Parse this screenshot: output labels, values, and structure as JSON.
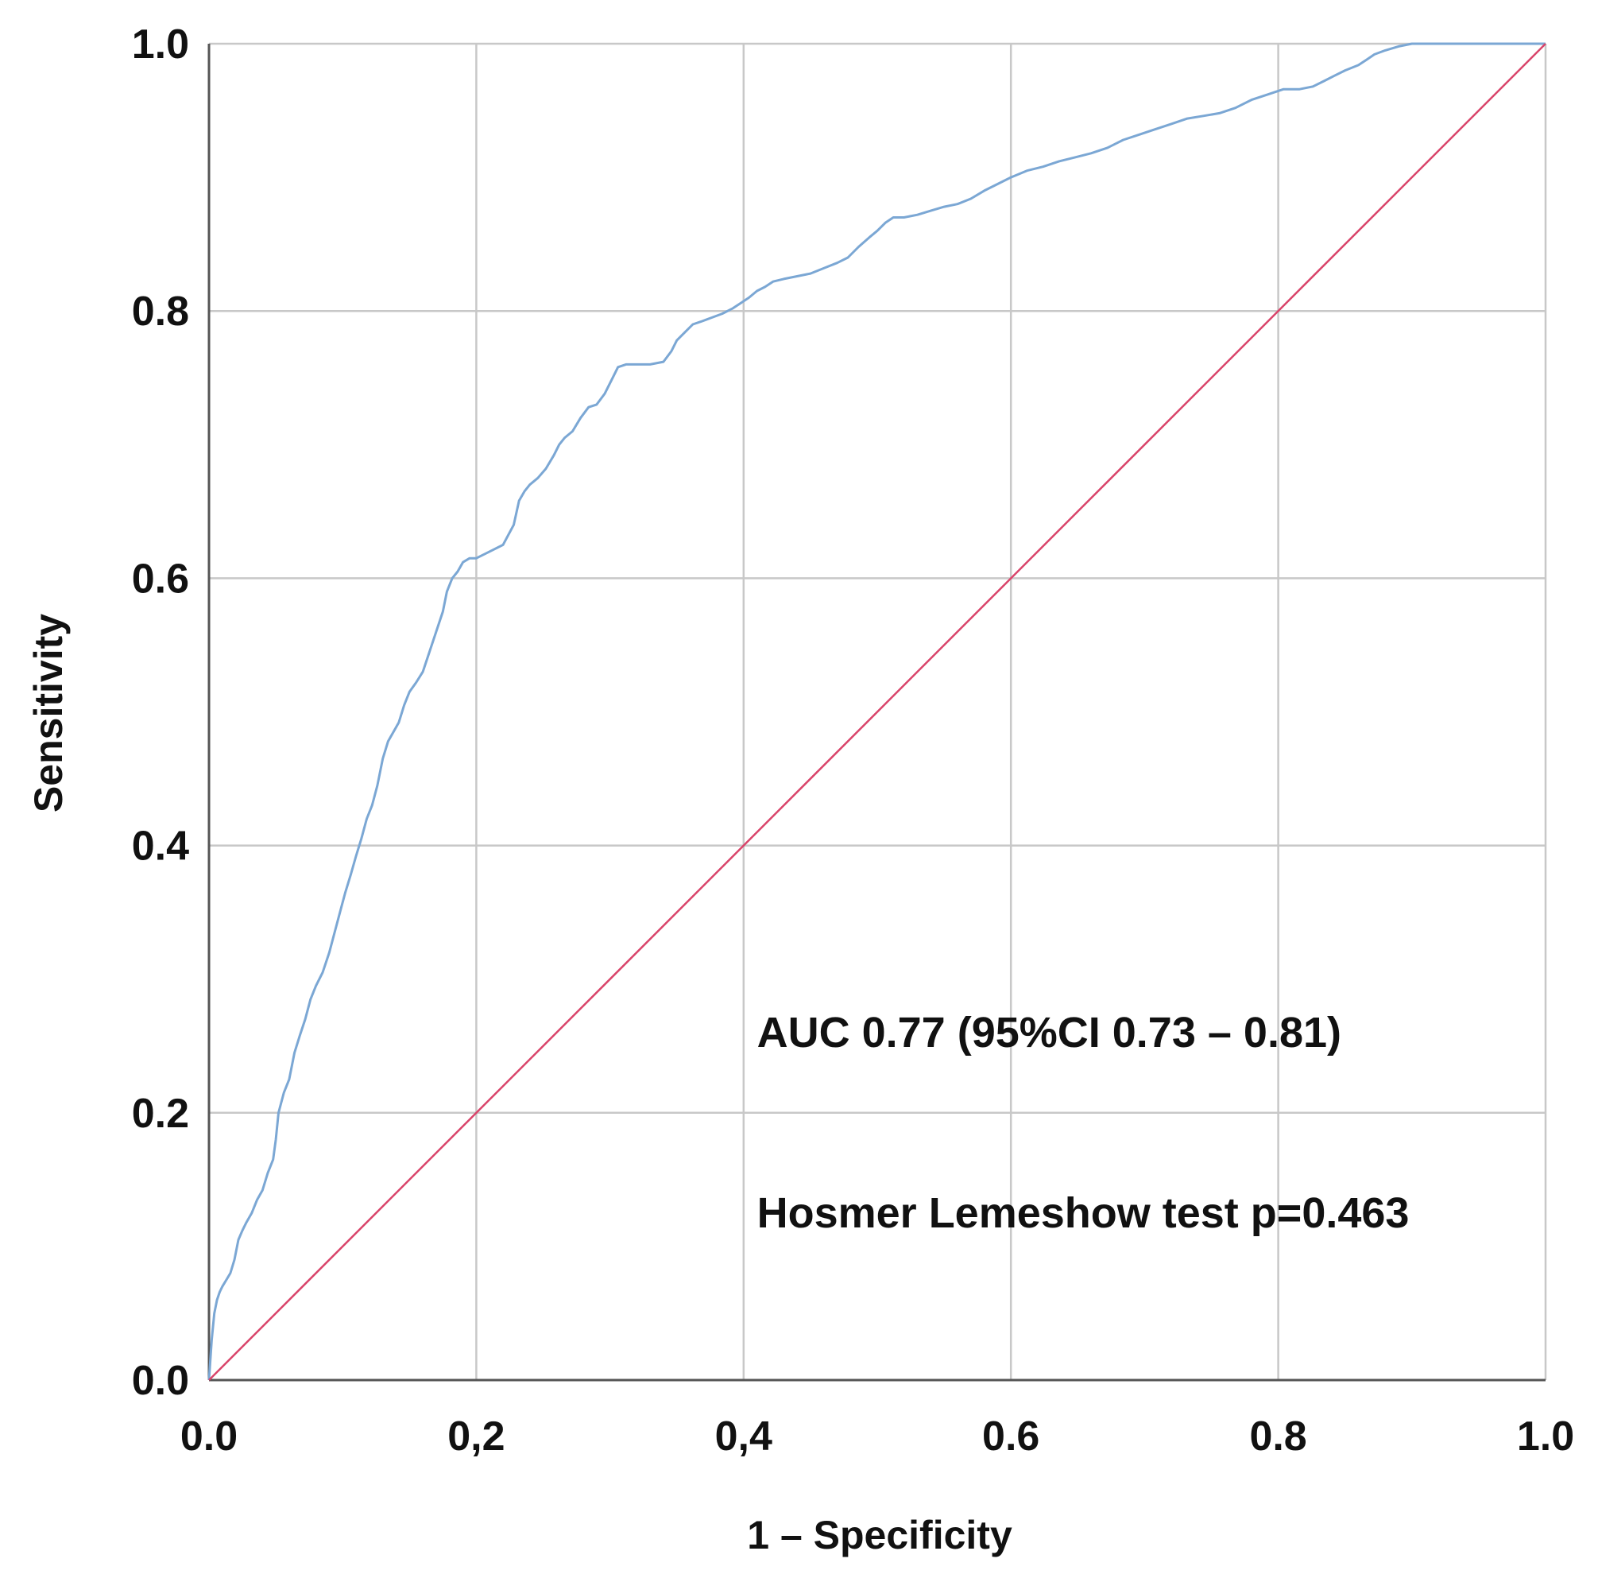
{
  "chart_data": {
    "type": "line",
    "title": "",
    "xlabel": "1 – Specificity",
    "ylabel": "Sensitivity",
    "xlim": [
      0,
      1
    ],
    "ylim": [
      0,
      1
    ],
    "grid": true,
    "x_ticks": [
      {
        "value": 0.0,
        "label": "0.0"
      },
      {
        "value": 0.2,
        "label": "0,2"
      },
      {
        "value": 0.4,
        "label": "0,4"
      },
      {
        "value": 0.6,
        "label": "0.6"
      },
      {
        "value": 0.8,
        "label": "0.8"
      },
      {
        "value": 1.0,
        "label": "1.0"
      }
    ],
    "y_ticks": [
      {
        "value": 0.0,
        "label": "0.0"
      },
      {
        "value": 0.2,
        "label": "0.2"
      },
      {
        "value": 0.4,
        "label": "0.4"
      },
      {
        "value": 0.6,
        "label": "0.6"
      },
      {
        "value": 0.8,
        "label": "0.8"
      },
      {
        "value": 1.0,
        "label": "1.0"
      }
    ],
    "series": [
      {
        "name": "ROC curve",
        "color": "#7ba7d4",
        "x": [
          0,
          0.002,
          0.004,
          0.006,
          0.008,
          0.01,
          0.013,
          0.016,
          0.019,
          0.022,
          0.025,
          0.028,
          0.032,
          0.036,
          0.04,
          0.044,
          0.048,
          0.05,
          0.052,
          0.056,
          0.06,
          0.064,
          0.068,
          0.072,
          0.076,
          0.08,
          0.085,
          0.09,
          0.094,
          0.098,
          0.102,
          0.106,
          0.11,
          0.114,
          0.118,
          0.122,
          0.126,
          0.13,
          0.134,
          0.138,
          0.142,
          0.146,
          0.15,
          0.155,
          0.16,
          0.165,
          0.17,
          0.175,
          0.178,
          0.182,
          0.186,
          0.19,
          0.195,
          0.2,
          0.21,
          0.22,
          0.228,
          0.232,
          0.236,
          0.24,
          0.246,
          0.252,
          0.258,
          0.262,
          0.266,
          0.272,
          0.278,
          0.284,
          0.29,
          0.296,
          0.302,
          0.306,
          0.312,
          0.32,
          0.33,
          0.34,
          0.346,
          0.35,
          0.356,
          0.362,
          0.368,
          0.376,
          0.384,
          0.392,
          0.398,
          0.404,
          0.41,
          0.416,
          0.422,
          0.43,
          0.44,
          0.45,
          0.46,
          0.47,
          0.478,
          0.486,
          0.494,
          0.5,
          0.506,
          0.512,
          0.52,
          0.53,
          0.54,
          0.55,
          0.56,
          0.57,
          0.58,
          0.59,
          0.6,
          0.612,
          0.624,
          0.636,
          0.648,
          0.66,
          0.672,
          0.684,
          0.696,
          0.708,
          0.72,
          0.732,
          0.744,
          0.756,
          0.768,
          0.78,
          0.792,
          0.804,
          0.816,
          0.826,
          0.834,
          0.842,
          0.85,
          0.86,
          0.866,
          0.872,
          0.88,
          0.89,
          0.9,
          0.92,
          0.95,
          1.0
        ],
        "y": [
          0,
          0.03,
          0.05,
          0.06,
          0.066,
          0.07,
          0.075,
          0.08,
          0.09,
          0.105,
          0.112,
          0.118,
          0.125,
          0.135,
          0.142,
          0.155,
          0.165,
          0.18,
          0.2,
          0.215,
          0.225,
          0.245,
          0.258,
          0.27,
          0.285,
          0.295,
          0.305,
          0.32,
          0.335,
          0.35,
          0.365,
          0.378,
          0.392,
          0.405,
          0.42,
          0.43,
          0.445,
          0.465,
          0.478,
          0.485,
          0.492,
          0.505,
          0.515,
          0.522,
          0.53,
          0.545,
          0.56,
          0.575,
          0.59,
          0.6,
          0.605,
          0.612,
          0.615,
          0.615,
          0.62,
          0.625,
          0.64,
          0.658,
          0.665,
          0.67,
          0.675,
          0.682,
          0.692,
          0.7,
          0.705,
          0.71,
          0.72,
          0.728,
          0.73,
          0.738,
          0.75,
          0.758,
          0.76,
          0.76,
          0.76,
          0.762,
          0.77,
          0.778,
          0.784,
          0.79,
          0.792,
          0.795,
          0.798,
          0.802,
          0.806,
          0.81,
          0.815,
          0.818,
          0.822,
          0.824,
          0.826,
          0.828,
          0.832,
          0.836,
          0.84,
          0.848,
          0.855,
          0.86,
          0.866,
          0.87,
          0.87,
          0.872,
          0.875,
          0.878,
          0.88,
          0.884,
          0.89,
          0.895,
          0.9,
          0.905,
          0.908,
          0.912,
          0.915,
          0.918,
          0.922,
          0.928,
          0.932,
          0.936,
          0.94,
          0.944,
          0.946,
          0.948,
          0.952,
          0.958,
          0.962,
          0.966,
          0.966,
          0.968,
          0.972,
          0.976,
          0.98,
          0.984,
          0.988,
          0.992,
          0.995,
          0.998,
          1.0,
          1.0,
          1.0,
          1.0
        ]
      },
      {
        "name": "Reference line",
        "color": "#d9446a",
        "x": [
          0,
          1
        ],
        "y": [
          0,
          1
        ]
      }
    ],
    "annotations": [
      {
        "text": "AUC 0.77 (95%CI 0.73 – 0.81)",
        "x": 0.41,
        "y": 0.26
      },
      {
        "text": "Hosmer  Lemeshow  test  p=0.463",
        "x": 0.41,
        "y": 0.125
      }
    ]
  },
  "colors": {
    "grid": "#c8c8c8",
    "axis": "#555555",
    "roc": "#7ba7d4",
    "reference": "#d9446a"
  }
}
